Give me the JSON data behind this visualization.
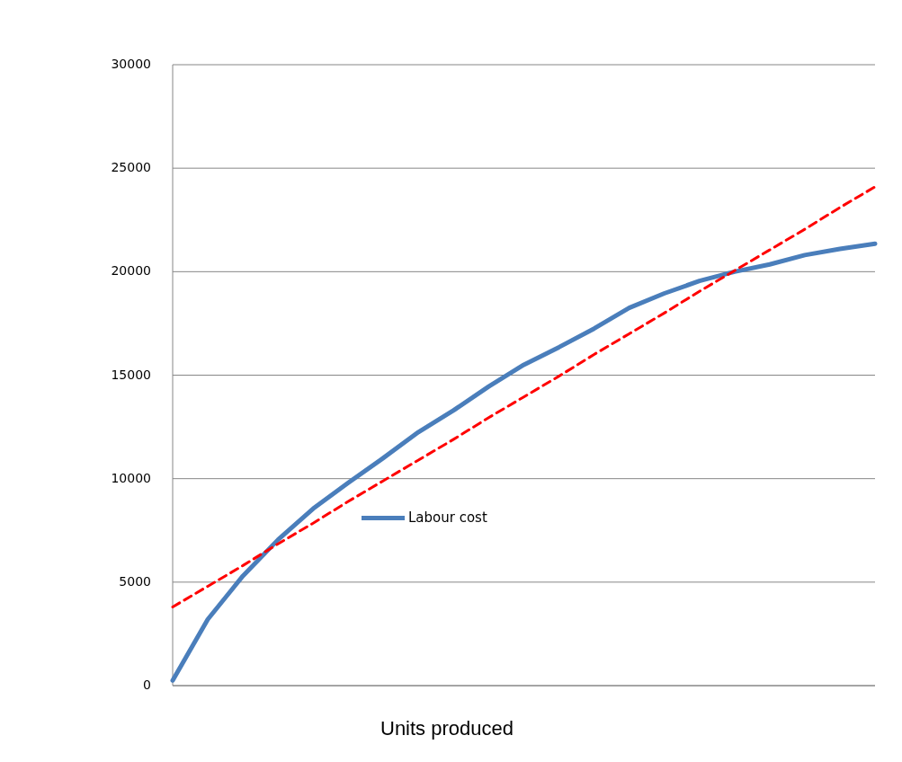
{
  "chart_data": {
    "type": "line",
    "xlabel": "Units produced",
    "categories": [
      null,
      null,
      null,
      null,
      null,
      null,
      null,
      null,
      null,
      null,
      null,
      null,
      null,
      null,
      null,
      null,
      null,
      null,
      null,
      null,
      null
    ],
    "series": [
      {
        "name": "Labour cost",
        "color": "#4a7ebb",
        "line_style": "solid",
        "values": [
          250,
          3200,
          5300,
          7050,
          8550,
          9800,
          11000,
          12250,
          13300,
          14450,
          15500,
          16350,
          17250,
          18250,
          18950,
          19550,
          20000,
          20350,
          20800,
          21100,
          21350
        ]
      },
      {
        "color": "#ff0000",
        "line_style": "dashed",
        "values": [
          3800,
          4800,
          5800,
          6850,
          7850,
          8900,
          9900,
          10900,
          11900,
          12950,
          13950,
          14950,
          16000,
          17000,
          18000,
          19050,
          20050,
          21050,
          22050,
          23100,
          24100
        ]
      }
    ],
    "ylim": [
      0,
      30000
    ],
    "yticks": [
      0,
      5000,
      10000,
      15000,
      20000,
      25000,
      30000
    ],
    "grid": "y",
    "legend": "left"
  }
}
